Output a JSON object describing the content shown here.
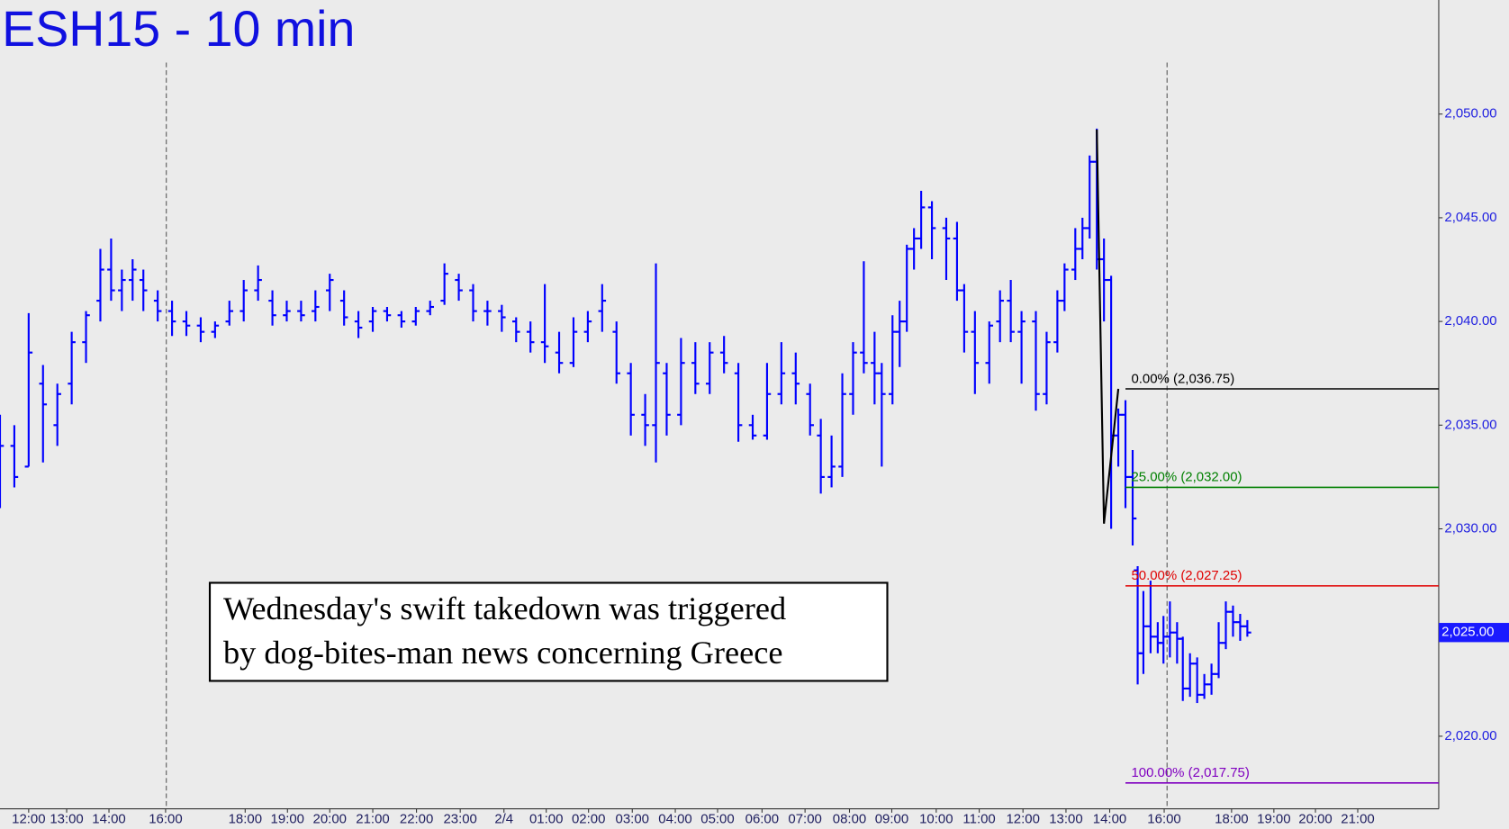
{
  "chart_data": {
    "type": "ohlc",
    "title": "ESH15 - 10 min",
    "annotation": [
      "Wednesday's swift takedown was triggered",
      "by dog-bites-man news concerning Greece"
    ],
    "color": "#0000ff",
    "xlim": [
      0,
      200.7
    ],
    "ylim": [
      2016.5,
      2055.5
    ],
    "yticks": [
      {
        "value": 2020,
        "label": "2,020.00"
      },
      {
        "value": 2025,
        "label": "2,025.00"
      },
      {
        "value": 2030,
        "label": "2,030.00"
      },
      {
        "value": 2035,
        "label": "2,035.00"
      },
      {
        "value": 2040,
        "label": "2,040.00"
      },
      {
        "value": 2045,
        "label": "2,045.00"
      },
      {
        "value": 2050,
        "label": "2,050.00"
      }
    ],
    "xticks": [
      {
        "value": 4,
        "label": "12:00"
      },
      {
        "value": 9.3,
        "label": "13:00"
      },
      {
        "value": 15.2,
        "label": "14:00"
      },
      {
        "value": 23.1,
        "label": "16:00"
      },
      {
        "value": 34.2,
        "label": "18:00"
      },
      {
        "value": 40.1,
        "label": "19:00"
      },
      {
        "value": 46,
        "label": "20:00"
      },
      {
        "value": 52,
        "label": "21:00"
      },
      {
        "value": 58.1,
        "label": "22:00"
      },
      {
        "value": 64.2,
        "label": "23:00"
      },
      {
        "value": 70.3,
        "label": "2/4"
      },
      {
        "value": 76.2,
        "label": "01:00"
      },
      {
        "value": 82.1,
        "label": "02:00"
      },
      {
        "value": 88.2,
        "label": "03:00"
      },
      {
        "value": 94.2,
        "label": "04:00"
      },
      {
        "value": 100.1,
        "label": "05:00"
      },
      {
        "value": 106.3,
        "label": "06:00"
      },
      {
        "value": 112.3,
        "label": "07:00"
      },
      {
        "value": 118.5,
        "label": "08:00"
      },
      {
        "value": 124.4,
        "label": "09:00"
      },
      {
        "value": 130.6,
        "label": "10:00"
      },
      {
        "value": 136.6,
        "label": "11:00"
      },
      {
        "value": 142.7,
        "label": "12:00"
      },
      {
        "value": 148.7,
        "label": "13:00"
      },
      {
        "value": 154.8,
        "label": "14:00"
      },
      {
        "value": 162.4,
        "label": "16:00"
      },
      {
        "value": 171.8,
        "label": "18:00"
      },
      {
        "value": 177.7,
        "label": "19:00"
      },
      {
        "value": 183.5,
        "label": "20:00"
      },
      {
        "value": 189.4,
        "label": "21:00"
      }
    ],
    "session_breaks": [
      23.2,
      162.8
    ],
    "x": [
      0,
      2,
      4,
      6,
      8,
      10,
      12,
      14,
      15.5,
      17,
      18.5,
      20,
      22,
      24,
      26,
      28,
      30,
      32,
      34,
      36,
      38,
      40,
      42,
      44,
      46,
      48,
      50,
      52,
      54,
      56,
      58,
      60,
      62,
      64,
      66,
      68,
      70,
      72,
      74,
      76,
      78,
      80,
      82,
      84,
      86,
      88,
      90,
      91.5,
      93,
      95,
      97,
      99,
      101,
      103,
      105,
      107,
      109,
      111,
      113,
      114.5,
      116,
      117.5,
      119,
      120.5,
      122,
      123,
      124.5,
      125.5,
      126.5,
      127.5,
      128.5,
      130,
      132,
      133.5,
      134.5,
      136,
      138,
      139.5,
      141,
      142.5,
      144.5,
      146,
      147.5,
      148.5,
      150,
      151,
      152,
      153,
      154,
      155,
      156,
      157,
      158,
      158.7,
      159.5,
      160.5,
      161.5,
      162.3,
      163.2,
      164.2,
      165,
      166,
      167,
      168,
      169,
      170,
      171,
      172,
      173,
      174
    ],
    "ohlc": [
      [
        2033.5,
        2035.5,
        2031,
        2034
      ],
      [
        2034,
        2035,
        2032,
        2032.5
      ],
      [
        2033,
        2040.4,
        2033,
        2038.5
      ],
      [
        2037,
        2037.9,
        2033.2,
        2036
      ],
      [
        2035,
        2037,
        2034,
        2036.5
      ],
      [
        2037,
        2039.5,
        2036,
        2039
      ],
      [
        2039,
        2040.5,
        2038,
        2040.3
      ],
      [
        2041,
        2043.5,
        2040,
        2042.5
      ],
      [
        2042.5,
        2044,
        2041,
        2041.5
      ],
      [
        2041.5,
        2042.5,
        2040.5,
        2042
      ],
      [
        2042,
        2043,
        2041,
        2042.5
      ],
      [
        2042,
        2042.5,
        2040.5,
        2041.5
      ],
      [
        2041,
        2041.5,
        2040,
        2040.5
      ],
      [
        2040.5,
        2041,
        2039.3,
        2040
      ],
      [
        2040,
        2040.5,
        2039.3,
        2039.8
      ],
      [
        2039.8,
        2040.2,
        2039,
        2039.5
      ],
      [
        2039.5,
        2040,
        2039.2,
        2039.8
      ],
      [
        2040,
        2041,
        2039.8,
        2040.5
      ],
      [
        2040.5,
        2042,
        2040,
        2041.5
      ],
      [
        2041.5,
        2042.7,
        2041,
        2042
      ],
      [
        2041,
        2041.5,
        2039.8,
        2040.3
      ],
      [
        2040.3,
        2041,
        2040,
        2040.5
      ],
      [
        2040.5,
        2041,
        2040,
        2040.3
      ],
      [
        2040.5,
        2041.5,
        2040,
        2040.7
      ],
      [
        2041.5,
        2042.3,
        2040.5,
        2042
      ],
      [
        2041,
        2041.5,
        2039.8,
        2040.2
      ],
      [
        2040,
        2040.5,
        2039.2,
        2039.7
      ],
      [
        2040,
        2040.7,
        2039.5,
        2040.5
      ],
      [
        2040.5,
        2040.7,
        2040,
        2040.3
      ],
      [
        2040.3,
        2040.5,
        2039.7,
        2040
      ],
      [
        2040,
        2040.7,
        2039.8,
        2040.5
      ],
      [
        2040.5,
        2041,
        2040.3,
        2040.7
      ],
      [
        2041,
        2042.8,
        2040.8,
        2042.3
      ],
      [
        2042,
        2042.3,
        2041,
        2041.5
      ],
      [
        2041.5,
        2041.8,
        2040,
        2040.5
      ],
      [
        2040.5,
        2041,
        2039.8,
        2040.5
      ],
      [
        2040.5,
        2040.8,
        2039.5,
        2040.2
      ],
      [
        2040,
        2040.2,
        2039,
        2039.5
      ],
      [
        2039.5,
        2040,
        2038.5,
        2039
      ],
      [
        2039,
        2041.8,
        2038,
        2038.8
      ],
      [
        2038.5,
        2039.5,
        2037.5,
        2038
      ],
      [
        2038,
        2040.2,
        2037.8,
        2039.5
      ],
      [
        2039.5,
        2040.5,
        2039,
        2040
      ],
      [
        2040.5,
        2041.8,
        2039.5,
        2041
      ],
      [
        2039.5,
        2040,
        2037,
        2037.5
      ],
      [
        2037.5,
        2038,
        2034.5,
        2035.5
      ],
      [
        2035.5,
        2036.5,
        2034,
        2035
      ],
      [
        2035,
        2042.8,
        2033.2,
        2038
      ],
      [
        2037.5,
        2038,
        2034.5,
        2035.5
      ],
      [
        2035.5,
        2039.2,
        2035,
        2038
      ],
      [
        2038,
        2039,
        2036.5,
        2037
      ],
      [
        2037,
        2039,
        2036.5,
        2038.5
      ],
      [
        2038.5,
        2039.3,
        2037.5,
        2038
      ],
      [
        2037.5,
        2038,
        2034.2,
        2035
      ],
      [
        2035,
        2035.5,
        2034.3,
        2034.5
      ],
      [
        2034.5,
        2038,
        2034.3,
        2036.5
      ],
      [
        2036.5,
        2039,
        2036,
        2037.5
      ],
      [
        2037.5,
        2038.5,
        2036,
        2037
      ],
      [
        2036.5,
        2037,
        2034.5,
        2035
      ],
      [
        2034.5,
        2035.3,
        2031.7,
        2032.5
      ],
      [
        2032.5,
        2034.5,
        2032,
        2033
      ],
      [
        2033,
        2037.5,
        2032.5,
        2036.5
      ],
      [
        2036.5,
        2039,
        2035.5,
        2038.5
      ],
      [
        2038.5,
        2042.9,
        2037.5,
        2038
      ],
      [
        2038,
        2039.5,
        2036,
        2037.5
      ],
      [
        2037.5,
        2038,
        2033,
        2036.5
      ],
      [
        2036.5,
        2040.3,
        2036,
        2039.5
      ],
      [
        2039.5,
        2041,
        2037.8,
        2040
      ],
      [
        2040,
        2043.7,
        2039.5,
        2043.5
      ],
      [
        2043.5,
        2044.5,
        2042.5,
        2044
      ],
      [
        2044,
        2046.3,
        2043.5,
        2045.5
      ],
      [
        2045.5,
        2045.8,
        2043,
        2044.5
      ],
      [
        2044.5,
        2045,
        2042,
        2044
      ],
      [
        2044,
        2044.8,
        2041,
        2041.5
      ],
      [
        2041.5,
        2041.8,
        2038.5,
        2039.5
      ],
      [
        2039.5,
        2040.5,
        2036.5,
        2038
      ],
      [
        2038,
        2040,
        2037,
        2039.8
      ],
      [
        2040,
        2041.5,
        2039,
        2041
      ],
      [
        2041,
        2042,
        2039,
        2039.5
      ],
      [
        2039.5,
        2040.5,
        2037,
        2040
      ],
      [
        2040,
        2040.5,
        2035.7,
        2036.5
      ],
      [
        2036.5,
        2039.5,
        2036,
        2039
      ],
      [
        2039,
        2041.5,
        2038.5,
        2041
      ],
      [
        2041,
        2042.8,
        2040.5,
        2042.5
      ],
      [
        2042.5,
        2044.5,
        2042,
        2043.5
      ],
      [
        2043.5,
        2045,
        2043,
        2044.5
      ],
      [
        2044.5,
        2048,
        2044,
        2047.7
      ],
      [
        2047.7,
        2049.3,
        2042.5,
        2043
      ],
      [
        2043,
        2044,
        2040,
        2042
      ],
      [
        2042,
        2042.2,
        2030,
        2034.5
      ],
      [
        2034.5,
        2035.8,
        2033,
        2035.5
      ],
      [
        2035.5,
        2036.2,
        2031,
        2032.5
      ],
      [
        2032.5,
        2033.8,
        2029.2,
        2030.5
      ],
      [
        2028,
        2028.2,
        2022.5,
        2024
      ],
      [
        2024,
        2027,
        2023,
        2025.3
      ],
      [
        2025.3,
        2027.5,
        2024,
        2024.8
      ],
      [
        2024.8,
        2025.5,
        2024,
        2024.5
      ],
      [
        2024.5,
        2025.8,
        2023.5,
        2024.8
      ],
      [
        2024.8,
        2026.5,
        2023.8,
        2025
      ],
      [
        2025,
        2025.5,
        2023.5,
        2024.7
      ],
      [
        2024.7,
        2024.8,
        2021.7,
        2022.3
      ],
      [
        2022.3,
        2024,
        2021.9,
        2023.5
      ],
      [
        2023.5,
        2023.8,
        2021.6,
        2022
      ],
      [
        2022,
        2023,
        2021.8,
        2022.5
      ],
      [
        2022.5,
        2023.5,
        2022,
        2023
      ],
      [
        2023,
        2025.5,
        2022.8,
        2024.5
      ],
      [
        2024.5,
        2026.5,
        2024.2,
        2026
      ],
      [
        2026,
        2026.3,
        2024.8,
        2025.5
      ],
      [
        2025.5,
        2025.9,
        2024.6,
        2025.3
      ],
      [
        2025.3,
        2025.6,
        2024.8,
        2025
      ]
    ],
    "swing": {
      "x": [
        153,
        154,
        156
      ],
      "values": [
        2049.25,
        2030.25,
        2036.75
      ],
      "color": "#000000"
    },
    "levels_start": 157,
    "levels": [
      {
        "label": "0.00% (2,036.75)",
        "value": 2036.75,
        "color": "#000000"
      },
      {
        "label": "25.00% (2,032.00)",
        "value": 2032,
        "color": "#008000"
      },
      {
        "label": "50.00% (2,027.25)",
        "value": 2027.25,
        "color": "#e00000"
      },
      {
        "label": "100.00% (2,017.75)",
        "value": 2017.75,
        "color": "#8000c0"
      }
    ],
    "last_price": {
      "value": 2025,
      "label": "2,025.00"
    }
  }
}
